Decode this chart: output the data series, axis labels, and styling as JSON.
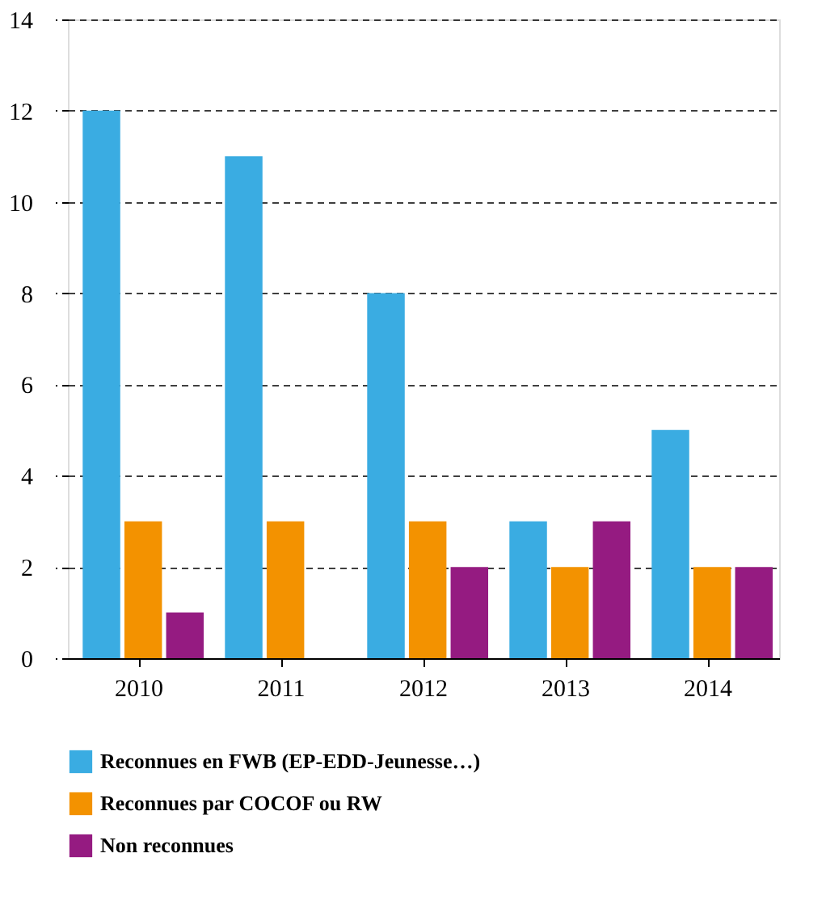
{
  "chart_data": {
    "type": "bar",
    "categories": [
      "2010",
      "2011",
      "2012",
      "2013",
      "2014"
    ],
    "series": [
      {
        "name": "Reconnues en FWB (EP-EDD-Jeunesse…)",
        "color": "#3aace2",
        "values": [
          12,
          11,
          8,
          3,
          5
        ]
      },
      {
        "name": "Reconnues par COCOF ou RW",
        "color": "#f39200",
        "values": [
          3,
          3,
          3,
          2,
          2
        ]
      },
      {
        "name": "Non reconnues",
        "color": "#951b81",
        "values": [
          1,
          null,
          2,
          3,
          2
        ]
      }
    ],
    "ylim": [
      0,
      14
    ],
    "yticks": [
      0,
      2,
      4,
      6,
      8,
      10,
      12,
      14
    ],
    "grid": "y",
    "legend": "bottom"
  }
}
